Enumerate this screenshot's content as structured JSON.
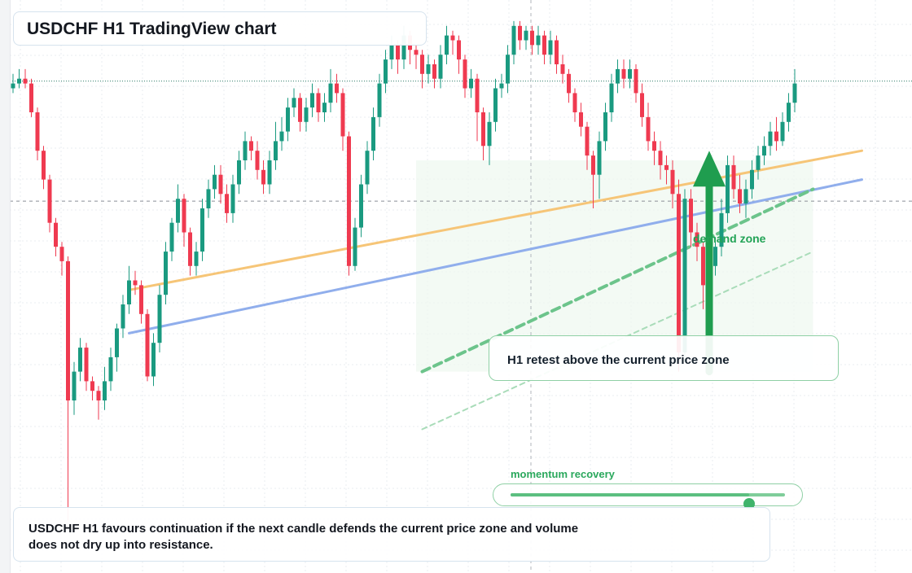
{
  "title": "USDCHF H1 TradingView chart",
  "note": "USDCHF H1 favours continuation if the next candle defends the current price zone and volume does not dry up into resistance.",
  "annotations": {
    "retest": "H1 retest above the current price zone",
    "demand_zone": "demand zone",
    "momentum": "momentum recovery",
    "momentum_level": 0.87
  },
  "colors": {
    "bull": "#1a9a80",
    "bear": "#ef3a50",
    "orange_trend": "#f6c577",
    "blue_trend": "#90aeec",
    "green_accent": "#22a356",
    "zone_fill": "#eef8f0"
  },
  "chart_data": {
    "type": "candlestick",
    "symbol": "USDCHF",
    "timeframe": "H1",
    "title": "",
    "xlabel": "",
    "ylabel": "",
    "grid": true,
    "ylim": [
      0,
      100
    ],
    "current_price": 86.5,
    "dashed_level": 61.5,
    "candles": [
      [
        85,
        86,
        88,
        84
      ],
      [
        86,
        87,
        89,
        85
      ],
      [
        87,
        86,
        89,
        85
      ],
      [
        86,
        80,
        87,
        79
      ],
      [
        80,
        72,
        81,
        70
      ],
      [
        72,
        66,
        73,
        64
      ],
      [
        66,
        57,
        67,
        55
      ],
      [
        57,
        52,
        58,
        50
      ],
      [
        52,
        49,
        53,
        46
      ],
      [
        49,
        20,
        50,
        -5
      ],
      [
        20,
        26,
        28,
        17
      ],
      [
        26,
        31,
        33,
        24
      ],
      [
        31,
        24,
        32,
        22
      ],
      [
        24,
        22,
        25,
        20
      ],
      [
        22,
        20,
        23,
        16
      ],
      [
        20,
        24,
        27,
        18
      ],
      [
        24,
        29,
        31,
        22
      ],
      [
        29,
        35,
        36,
        26
      ],
      [
        35,
        40,
        42,
        33
      ],
      [
        40,
        45,
        48,
        38
      ],
      [
        45,
        44,
        47,
        42
      ],
      [
        44,
        38,
        45,
        36
      ],
      [
        38,
        25,
        39,
        24
      ],
      [
        25,
        32,
        34,
        23
      ],
      [
        32,
        42,
        44,
        30
      ],
      [
        42,
        51,
        53,
        40
      ],
      [
        51,
        57,
        58,
        49
      ],
      [
        57,
        62,
        65,
        55
      ],
      [
        62,
        55,
        63,
        52
      ],
      [
        55,
        48,
        56,
        46
      ],
      [
        48,
        51,
        53,
        46
      ],
      [
        51,
        60,
        62,
        49
      ],
      [
        60,
        64,
        66,
        58
      ],
      [
        64,
        67,
        69,
        62
      ],
      [
        67,
        63,
        69,
        61
      ],
      [
        63,
        59,
        65,
        57
      ],
      [
        59,
        65,
        67,
        57
      ],
      [
        65,
        70,
        72,
        63
      ],
      [
        70,
        74,
        76,
        68
      ],
      [
        74,
        72,
        75,
        70
      ],
      [
        72,
        68,
        74,
        66
      ],
      [
        68,
        65,
        70,
        63
      ],
      [
        65,
        70,
        72,
        63
      ],
      [
        70,
        74,
        78,
        68
      ],
      [
        74,
        76,
        79,
        72
      ],
      [
        76,
        81,
        83,
        74
      ],
      [
        81,
        83,
        85,
        79
      ],
      [
        83,
        78,
        84,
        76
      ],
      [
        78,
        81,
        83,
        76
      ],
      [
        81,
        84,
        86,
        79
      ],
      [
        84,
        80,
        85,
        78
      ],
      [
        80,
        82,
        84,
        78
      ],
      [
        82,
        86,
        89,
        80
      ],
      [
        86,
        84,
        88,
        82
      ],
      [
        84,
        75,
        85,
        72
      ],
      [
        75,
        48,
        76,
        46
      ],
      [
        48,
        56,
        58,
        47
      ],
      [
        56,
        65,
        67,
        54
      ],
      [
        65,
        72,
        74,
        63
      ],
      [
        72,
        79,
        81,
        70
      ],
      [
        79,
        86,
        88,
        77
      ],
      [
        86,
        91,
        93,
        84
      ],
      [
        91,
        94,
        96,
        89
      ],
      [
        94,
        91,
        95,
        88
      ],
      [
        91,
        96,
        98,
        89
      ],
      [
        96,
        93,
        97,
        90
      ],
      [
        93,
        92,
        94,
        89
      ],
      [
        92,
        88,
        93,
        85
      ],
      [
        88,
        90,
        92,
        86
      ],
      [
        90,
        87,
        91,
        85
      ],
      [
        87,
        92,
        94,
        85
      ],
      [
        92,
        96,
        98,
        90
      ],
      [
        96,
        95,
        97,
        92
      ],
      [
        95,
        91,
        96,
        88
      ],
      [
        91,
        85,
        92,
        83
      ],
      [
        85,
        87,
        89,
        83
      ],
      [
        87,
        80,
        88,
        74
      ],
      [
        80,
        73,
        81,
        70
      ],
      [
        73,
        78,
        80,
        69
      ],
      [
        78,
        85,
        87,
        76
      ],
      [
        85,
        86,
        88,
        83
      ],
      [
        86,
        92,
        94,
        84
      ],
      [
        92,
        98,
        99,
        90
      ],
      [
        98,
        95,
        99,
        93
      ],
      [
        95,
        97,
        98,
        93
      ],
      [
        97,
        94,
        98,
        92
      ],
      [
        94,
        96,
        98,
        92
      ],
      [
        96,
        92,
        97,
        90
      ],
      [
        92,
        95,
        97,
        90
      ],
      [
        95,
        90,
        96,
        88
      ],
      [
        90,
        88,
        92,
        86
      ],
      [
        88,
        84,
        89,
        82
      ],
      [
        84,
        80,
        85,
        78
      ],
      [
        80,
        77,
        82,
        75
      ],
      [
        77,
        71,
        78,
        68
      ],
      [
        71,
        67,
        72,
        60
      ],
      [
        67,
        74,
        76,
        62
      ],
      [
        74,
        80,
        82,
        72
      ],
      [
        80,
        86,
        88,
        78
      ],
      [
        86,
        89,
        91,
        84
      ],
      [
        89,
        87,
        91,
        85
      ],
      [
        87,
        89,
        91,
        85
      ],
      [
        89,
        84,
        90,
        82
      ],
      [
        84,
        79,
        86,
        77
      ],
      [
        79,
        74,
        82,
        72
      ],
      [
        74,
        72,
        76,
        69
      ],
      [
        72,
        69,
        74,
        66
      ],
      [
        69,
        68,
        71,
        65
      ],
      [
        68,
        63,
        70,
        60
      ],
      [
        63,
        30,
        66,
        26
      ],
      [
        30,
        62,
        64,
        28
      ],
      [
        62,
        55,
        64,
        52
      ],
      [
        55,
        52,
        57,
        49
      ],
      [
        52,
        44,
        53,
        39
      ],
      [
        44,
        48,
        50,
        40
      ],
      [
        48,
        52,
        54,
        46
      ],
      [
        52,
        59,
        62,
        50
      ],
      [
        59,
        69,
        71,
        57
      ],
      [
        69,
        64,
        71,
        62
      ],
      [
        64,
        61,
        67,
        59
      ],
      [
        61,
        64,
        66,
        58
      ],
      [
        64,
        68,
        70,
        62
      ],
      [
        68,
        71,
        73,
        66
      ],
      [
        71,
        73,
        75,
        69
      ],
      [
        73,
        76,
        78,
        71
      ],
      [
        76,
        74,
        79,
        72
      ],
      [
        74,
        78,
        80,
        73
      ],
      [
        78,
        82,
        84,
        76
      ],
      [
        82,
        86,
        89,
        80
      ]
    ],
    "trendlines": [
      {
        "name": "orange",
        "from": [
          19,
          43
        ],
        "to": [
          139,
          72
        ]
      },
      {
        "name": "blue",
        "from": [
          19,
          34
        ],
        "to": [
          139,
          66
        ]
      },
      {
        "name": "green-dashed",
        "from": [
          67,
          26
        ],
        "to": [
          131,
          64
        ]
      },
      {
        "name": "green-faint",
        "from": [
          67,
          14
        ],
        "to": [
          131,
          51
        ]
      }
    ],
    "demand_zone": {
      "x": [
        66,
        131
      ],
      "y": [
        26,
        70
      ]
    },
    "dotted_level": 84,
    "arrow": {
      "x": 114,
      "from": 26,
      "to": 72
    }
  }
}
